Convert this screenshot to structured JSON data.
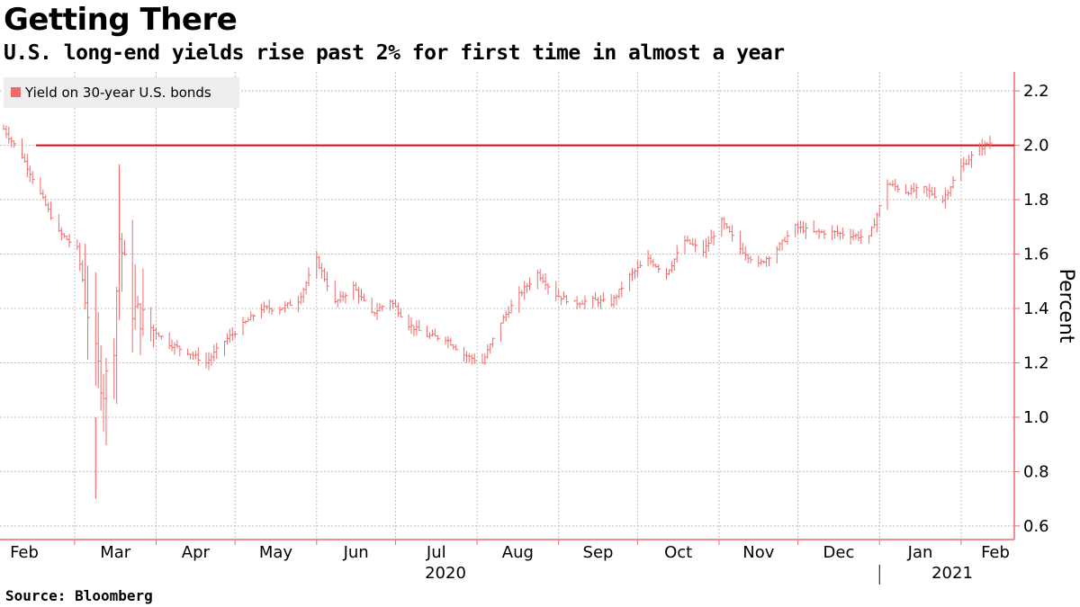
{
  "title": "Getting There",
  "subtitle": "U.S. long-end yields rise past 2% for first time in almost a year",
  "source": "Source: Bloomberg",
  "colors": {
    "series": "#f06a6a",
    "reference": "#e8000b",
    "grid": "#bfbfbf",
    "axis": "#f06a6a",
    "legend_bg": "#eeeeee"
  },
  "chart_data": {
    "type": "bar",
    "title": "Getting There",
    "subtitle": "U.S. long-end yields rise past 2% for first time in almost a year",
    "ylabel": "Percent",
    "ylim": [
      0.55,
      2.27
    ],
    "y_ticks": [
      0.6,
      0.8,
      1.0,
      1.2,
      1.4,
      1.6,
      1.8,
      2.0,
      2.2
    ],
    "y_tick_labels": [
      "0.6",
      "0.8",
      "1.0",
      "1.2",
      "1.4",
      "1.6",
      "1.8",
      "2.0",
      "2.2"
    ],
    "x_month_labels": [
      "Feb",
      "Mar",
      "Apr",
      "May",
      "Jun",
      "Jul",
      "Aug",
      "Sep",
      "Oct",
      "Nov",
      "Dec",
      "Jan",
      "Feb"
    ],
    "x_year_labels": [
      "2020",
      "2021"
    ],
    "x_start": "2020-02-03",
    "x_end": "2021-02-12",
    "grid": true,
    "legend": {
      "position": "top-left",
      "entries": [
        "Yield on 30-year U.S. bonds"
      ]
    },
    "reference_line": {
      "value": 2.0
    },
    "series": [
      {
        "name": "Yield on 30-year U.S. bonds",
        "style": "high-low bars",
        "x": [
          "2020-02-03",
          "2020-02-10",
          "2020-02-17",
          "2020-02-24",
          "2020-03-02",
          "2020-03-09",
          "2020-03-12",
          "2020-03-16",
          "2020-03-18",
          "2020-03-23",
          "2020-03-30",
          "2020-04-06",
          "2020-04-13",
          "2020-04-20",
          "2020-04-27",
          "2020-05-04",
          "2020-05-11",
          "2020-05-18",
          "2020-05-25",
          "2020-06-01",
          "2020-06-08",
          "2020-06-15",
          "2020-06-22",
          "2020-06-29",
          "2020-07-06",
          "2020-07-13",
          "2020-07-20",
          "2020-07-27",
          "2020-08-03",
          "2020-08-10",
          "2020-08-17",
          "2020-08-24",
          "2020-08-31",
          "2020-09-07",
          "2020-09-14",
          "2020-09-21",
          "2020-09-28",
          "2020-10-05",
          "2020-10-12",
          "2020-10-19",
          "2020-10-26",
          "2020-11-02",
          "2020-11-09",
          "2020-11-16",
          "2020-11-23",
          "2020-11-30",
          "2020-12-07",
          "2020-12-14",
          "2020-12-21",
          "2020-12-28",
          "2021-01-04",
          "2021-01-11",
          "2021-01-18",
          "2021-01-25",
          "2021-02-01",
          "2021-02-08",
          "2021-02-12"
        ],
        "close": [
          2.06,
          1.96,
          1.82,
          1.68,
          1.62,
          1.22,
          1.1,
          1.28,
          1.66,
          1.4,
          1.33,
          1.27,
          1.24,
          1.2,
          1.28,
          1.34,
          1.4,
          1.4,
          1.43,
          1.58,
          1.42,
          1.48,
          1.38,
          1.43,
          1.34,
          1.3,
          1.29,
          1.23,
          1.2,
          1.35,
          1.45,
          1.53,
          1.45,
          1.42,
          1.43,
          1.42,
          1.52,
          1.58,
          1.53,
          1.65,
          1.61,
          1.72,
          1.62,
          1.56,
          1.62,
          1.7,
          1.68,
          1.68,
          1.67,
          1.66,
          1.86,
          1.83,
          1.84,
          1.8,
          1.92,
          1.99,
          2.01
        ]
      }
    ]
  }
}
